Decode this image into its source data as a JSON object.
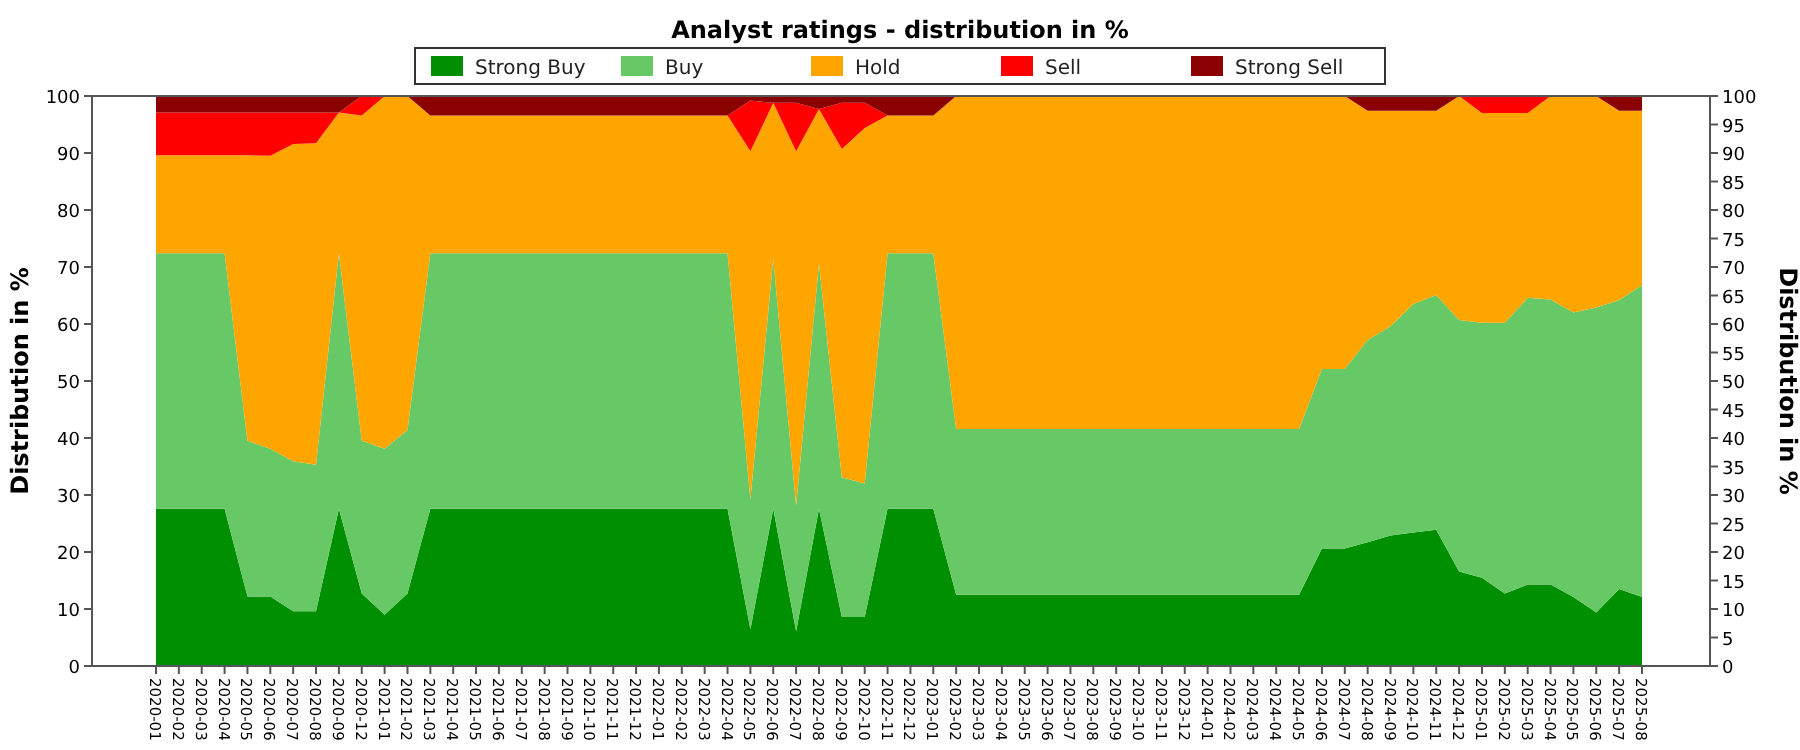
{
  "chart_data": {
    "type": "area",
    "title": "Analyst ratings - distribution in %",
    "ylabel": "Distribution in %",
    "y2label": "Distribution in %",
    "stacked": true,
    "grid": "y",
    "legend": "top",
    "categories": [
      "2020-01",
      "2020-02",
      "2020-03",
      "2020-04",
      "2020-05",
      "2020-06",
      "2020-07",
      "2020-08",
      "2020-09",
      "2020-12",
      "2021-01",
      "2021-02",
      "2021-03",
      "2021-04",
      "2021-05",
      "2021-06",
      "2021-07",
      "2021-08",
      "2021-09",
      "2021-10",
      "2021-11",
      "2021-12",
      "2022-01",
      "2022-02",
      "2022-03",
      "2022-04",
      "2022-05",
      "2022-06",
      "2022-07",
      "2022-08",
      "2022-09",
      "2022-10",
      "2022-11",
      "2022-12",
      "2023-01",
      "2023-02",
      "2023-03",
      "2023-04",
      "2023-05",
      "2023-06",
      "2023-07",
      "2023-08",
      "2023-09",
      "2023-10",
      "2023-11",
      "2023-12",
      "2024-01",
      "2024-02",
      "2024-03",
      "2024-04",
      "2024-05",
      "2024-06",
      "2024-07",
      "2024-08",
      "2024-09",
      "2024-10",
      "2024-11",
      "2024-12",
      "2025-01",
      "2025-02",
      "2025-03",
      "2025-04",
      "2025-05",
      "2025-06",
      "2025-07",
      "2025-08"
    ],
    "ylim": [
      0,
      100
    ],
    "yticks": [
      0,
      10,
      20,
      30,
      40,
      50,
      60,
      70,
      80,
      90,
      100
    ],
    "y2lim": [
      0,
      100
    ],
    "y2ticks": [
      0,
      5,
      10,
      15,
      20,
      25,
      30,
      35,
      40,
      45,
      50,
      55,
      60,
      65,
      70,
      75,
      80,
      85,
      90,
      95,
      100
    ],
    "series": [
      {
        "name": "Strong Buy",
        "color": "#008f00",
        "values": [
          27.6,
          27.6,
          27.6,
          27.6,
          12.2,
          12.2,
          9.6,
          9.6,
          27.6,
          12.7,
          9.0,
          12.7,
          27.6,
          27.6,
          27.6,
          27.6,
          27.6,
          27.6,
          27.6,
          27.6,
          27.6,
          27.6,
          27.6,
          27.6,
          27.6,
          27.6,
          6.4,
          27.6,
          6.1,
          27.6,
          8.6,
          8.6,
          27.6,
          27.6,
          27.6,
          12.5,
          12.5,
          12.5,
          12.5,
          12.5,
          12.5,
          12.5,
          12.5,
          12.5,
          12.5,
          12.5,
          12.5,
          12.5,
          12.5,
          12.5,
          12.5,
          20.6,
          20.6,
          21.7,
          22.9,
          23.4,
          23.9,
          16.6,
          15.5,
          12.7,
          14.3,
          14.3,
          12.1,
          9.4,
          13.5,
          12.1
        ]
      },
      {
        "name": "Buy",
        "color": "#66c966",
        "values": [
          44.8,
          44.8,
          44.8,
          44.8,
          27.3,
          25.9,
          26.3,
          25.7,
          44.8,
          26.8,
          29.1,
          28.7,
          44.8,
          44.8,
          44.8,
          44.8,
          44.8,
          44.8,
          44.8,
          44.8,
          44.8,
          44.8,
          44.8,
          44.8,
          44.8,
          44.8,
          22.8,
          43.8,
          22.0,
          43.0,
          24.5,
          23.4,
          44.8,
          44.8,
          44.8,
          29.1,
          29.1,
          29.1,
          29.1,
          29.1,
          29.1,
          29.1,
          29.1,
          29.1,
          29.1,
          29.1,
          29.1,
          29.1,
          29.1,
          29.1,
          29.1,
          31.5,
          31.5,
          35.5,
          36.7,
          40.1,
          41.2,
          44.1,
          44.7,
          47.5,
          50.3,
          50.0,
          49.9,
          53.5,
          50.7,
          54.7
        ]
      },
      {
        "name": "Hold",
        "color": "#ffa500",
        "values": [
          17.2,
          17.2,
          17.2,
          17.2,
          50.1,
          51.4,
          55.7,
          56.4,
          24.7,
          57.1,
          61.9,
          58.6,
          24.2,
          24.2,
          24.2,
          24.2,
          24.2,
          24.2,
          24.2,
          24.2,
          24.2,
          24.2,
          24.2,
          24.2,
          24.2,
          24.2,
          61.1,
          27.4,
          62.2,
          27.1,
          57.6,
          62.4,
          24.2,
          24.2,
          24.2,
          58.4,
          58.4,
          58.4,
          58.4,
          58.4,
          58.4,
          58.4,
          58.4,
          58.4,
          58.4,
          58.4,
          58.4,
          58.4,
          58.4,
          58.4,
          58.4,
          47.9,
          47.9,
          40.2,
          37.8,
          33.9,
          32.3,
          39.3,
          36.8,
          36.8,
          32.4,
          35.7,
          38.0,
          37.1,
          33.2,
          30.6
        ]
      },
      {
        "name": "Sell",
        "color": "#ff0000",
        "values": [
          7.5,
          7.5,
          7.5,
          7.5,
          7.5,
          7.6,
          5.5,
          5.4,
          0,
          3.4,
          0,
          0,
          0,
          0,
          0,
          0,
          0,
          0,
          0,
          0,
          0,
          0,
          0,
          0,
          0,
          0,
          8.9,
          0,
          8.5,
          0,
          8.1,
          4.4,
          0,
          0,
          0,
          0,
          0,
          0,
          0,
          0,
          0,
          0,
          0,
          0,
          0,
          0,
          0,
          0,
          0,
          0,
          0,
          0,
          0,
          0,
          0,
          0,
          0,
          0,
          3.0,
          3.0,
          3.0,
          0,
          0,
          0,
          0,
          0
        ]
      },
      {
        "name": "Strong Sell",
        "color": "#8b0000",
        "values": [
          2.9,
          2.9,
          2.9,
          2.9,
          2.9,
          2.9,
          2.9,
          2.9,
          2.9,
          0,
          0,
          0,
          3.4,
          3.4,
          3.4,
          3.4,
          3.4,
          3.4,
          3.4,
          3.4,
          3.4,
          3.4,
          3.4,
          3.4,
          3.4,
          3.4,
          0.8,
          1.2,
          1.2,
          2.3,
          1.2,
          1.2,
          3.4,
          3.4,
          3.4,
          0,
          0,
          0,
          0,
          0,
          0,
          0,
          0,
          0,
          0,
          0,
          0,
          0,
          0,
          0,
          0,
          0,
          0,
          2.6,
          2.6,
          2.6,
          2.6,
          0,
          0,
          0,
          0,
          0,
          0,
          0,
          2.6,
          2.6
        ]
      }
    ]
  }
}
